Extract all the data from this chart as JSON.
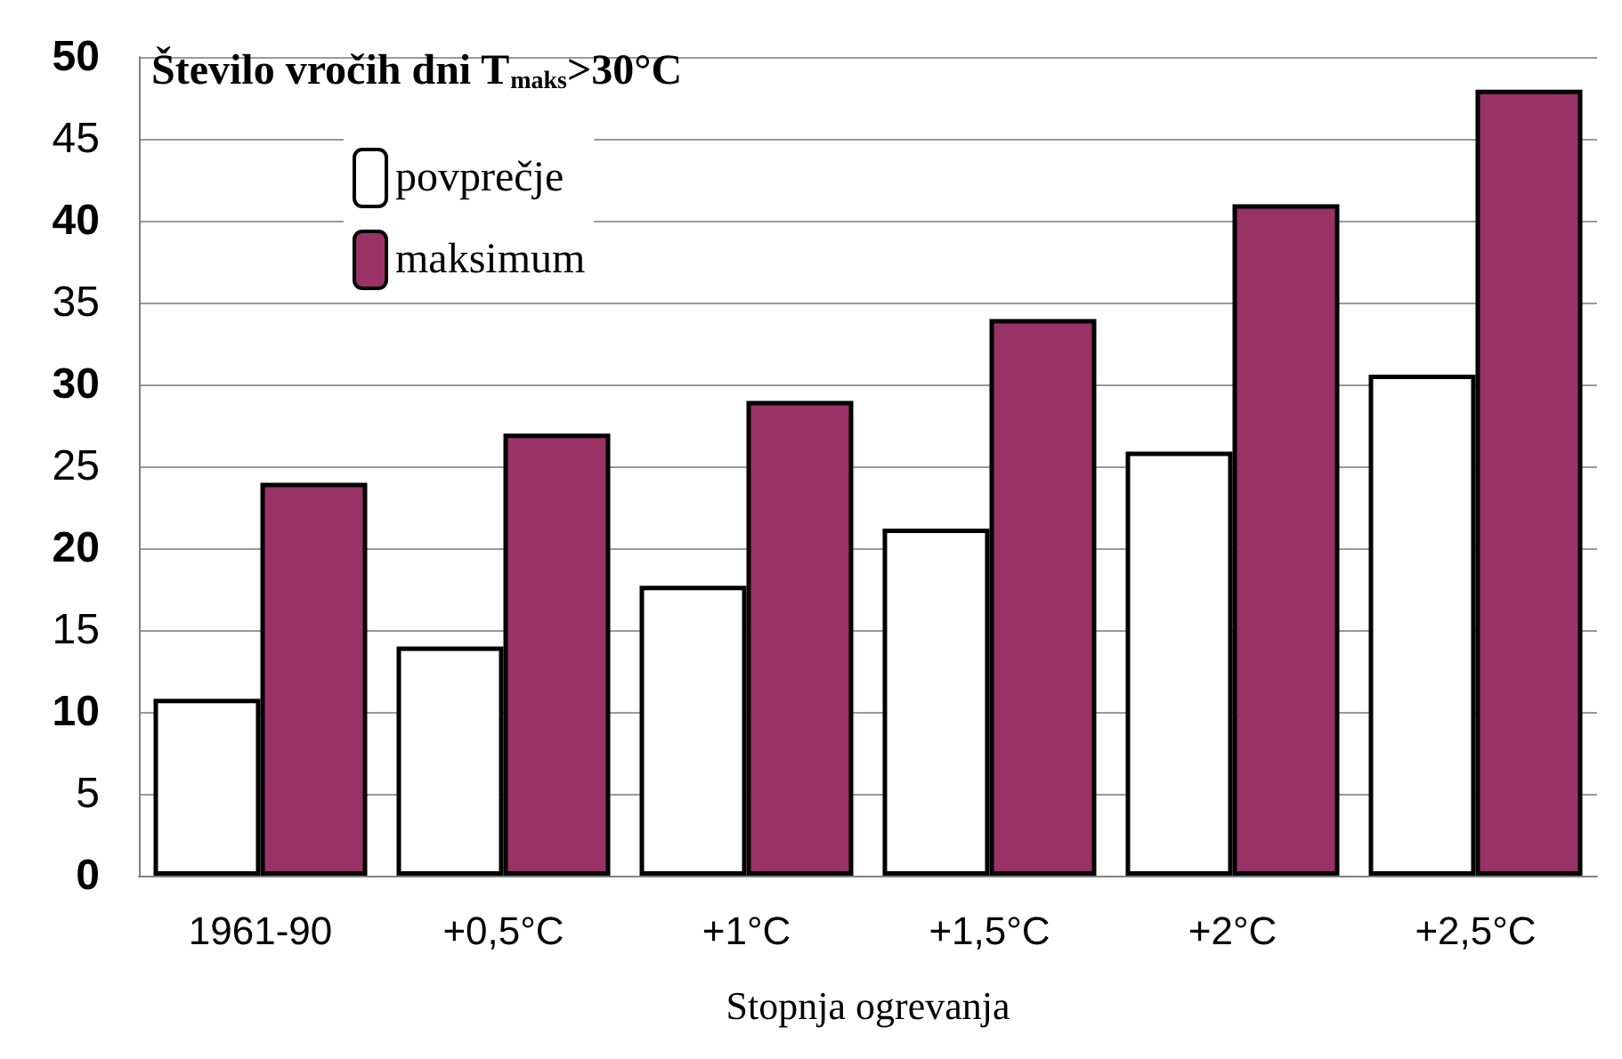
{
  "chart_data": {
    "type": "bar",
    "title": "Število vročih dni T$_{maks}$>30°C",
    "xlabel": "Stopnja ogrevanja",
    "categories": [
      "1961-90",
      "+0,5°C",
      "+1°C",
      "+1,5°C",
      "+2°C",
      "+2,5°C"
    ],
    "series": [
      {
        "name": "povprečje",
        "color": "#ffffff",
        "values": [
          10.8,
          14.0,
          17.7,
          21.2,
          25.9,
          30.6
        ]
      },
      {
        "name": "maksimum",
        "color": "#993366",
        "values": [
          24,
          27,
          29,
          34,
          41,
          48
        ]
      }
    ],
    "ylim": [
      0,
      50
    ],
    "yticks": [
      0,
      5,
      10,
      15,
      20,
      25,
      30,
      35,
      40,
      45,
      50
    ],
    "grid": "y",
    "legend": "top left"
  }
}
